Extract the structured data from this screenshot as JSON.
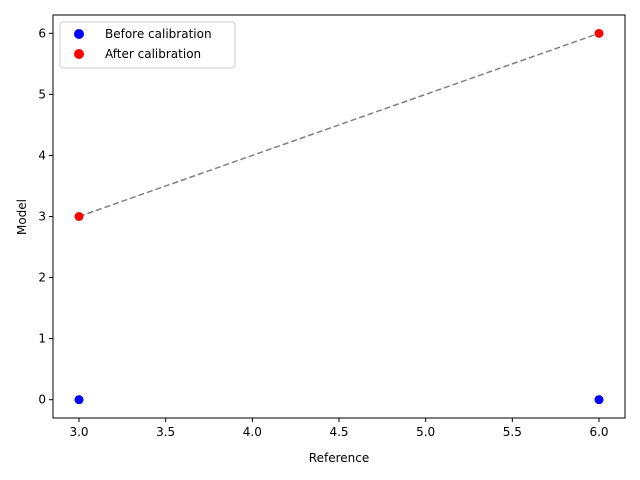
{
  "chart_data": {
    "type": "scatter",
    "title": "",
    "xlabel": "Reference",
    "ylabel": "Model",
    "xlim": [
      2.85,
      6.15
    ],
    "ylim": [
      -0.3,
      6.3
    ],
    "xticks": [
      3.0,
      3.5,
      4.0,
      4.5,
      5.0,
      5.5,
      6.0
    ],
    "xtick_labels": [
      "3.0",
      "3.5",
      "4.0",
      "4.5",
      "5.0",
      "5.5",
      "6.0"
    ],
    "yticks": [
      0,
      1,
      2,
      3,
      4,
      5,
      6
    ],
    "ytick_labels": [
      "0",
      "1",
      "2",
      "3",
      "4",
      "5",
      "6"
    ],
    "grid": false,
    "legend_position": "top-left",
    "series": [
      {
        "name": "Before calibration",
        "color": "#0000ff",
        "x": [
          3,
          6
        ],
        "y": [
          0,
          0
        ]
      },
      {
        "name": "After calibration",
        "color": "#ff0000",
        "x": [
          3,
          6
        ],
        "y": [
          3,
          6
        ]
      }
    ],
    "reference_line": {
      "style": "dashed",
      "color": "#808080",
      "x": [
        3,
        6
      ],
      "y": [
        3,
        6
      ]
    }
  }
}
